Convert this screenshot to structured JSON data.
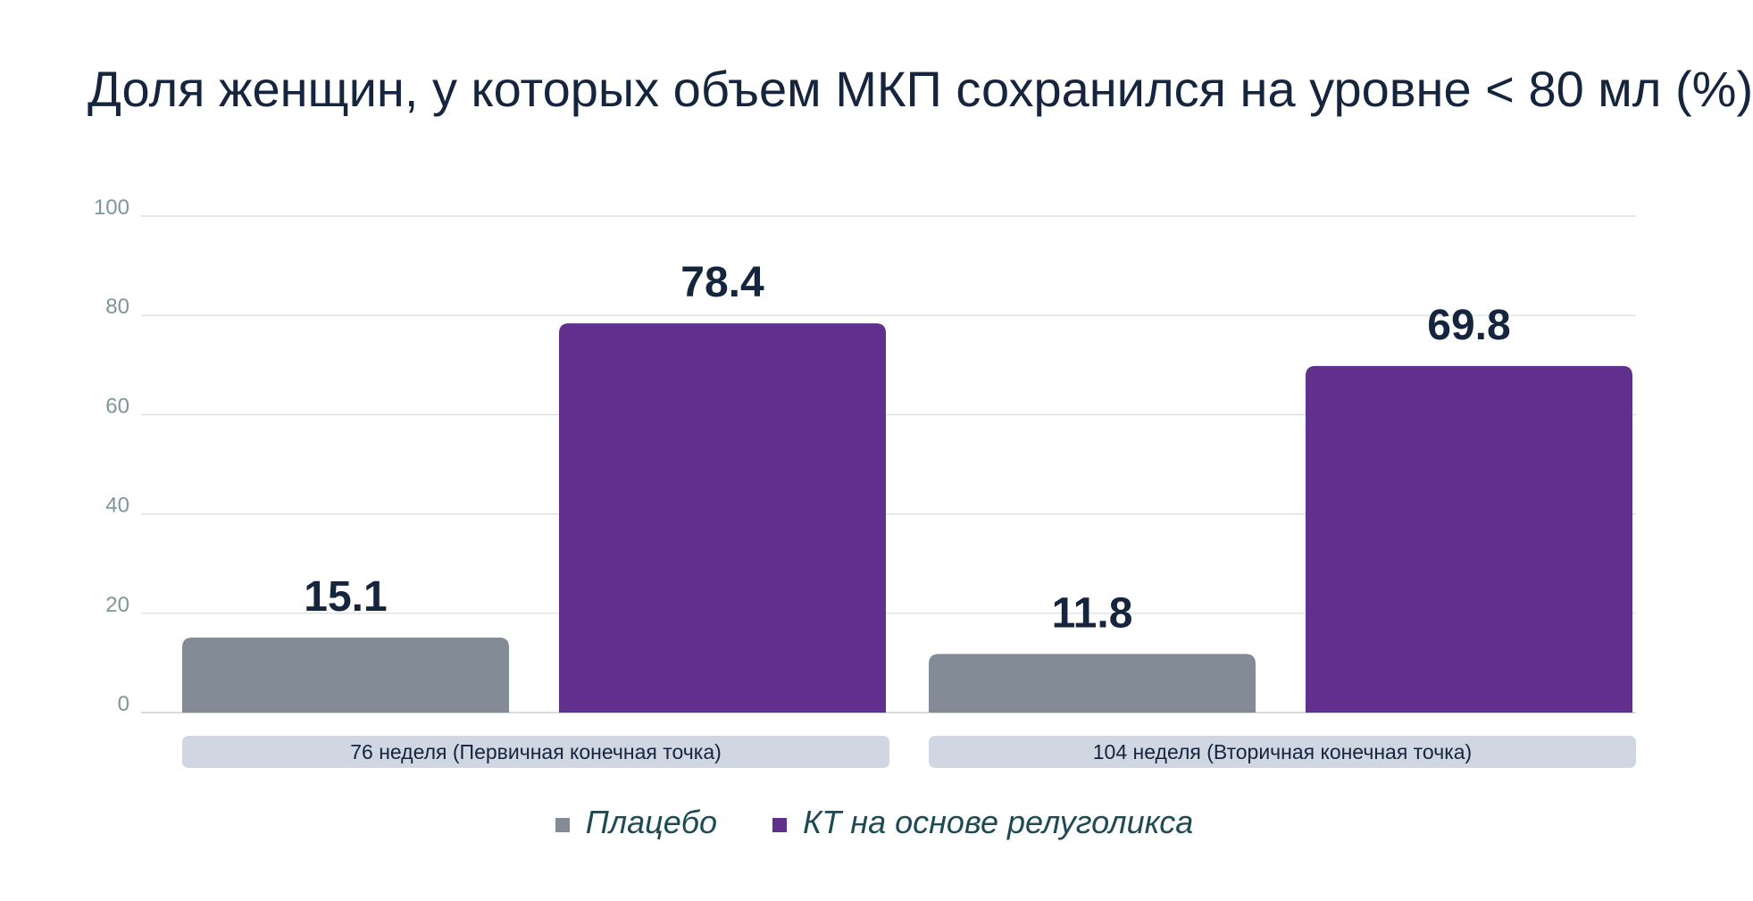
{
  "chart_data": {
    "type": "bar",
    "title": "Доля женщин, у которых объем МКП сохранился на уровне < 80 мл (%)",
    "categories": [
      "76 неделя (Первичная конечная точка)",
      "104 неделя (Вторичная конечная точка)"
    ],
    "series": [
      {
        "name": "Плацебо",
        "values": [
          15.1,
          11.8
        ],
        "labels": [
          "15.1",
          "11.8"
        ],
        "color": "#828b96"
      },
      {
        "name": "КТ на основе релуголикса",
        "values": [
          78.4,
          69.8
        ],
        "labels": [
          "78.4",
          "69.8"
        ],
        "color": "#61308f"
      }
    ],
    "ylim": [
      0,
      100
    ],
    "yticks": [
      "0",
      "20",
      "40",
      "60",
      "80",
      "100"
    ],
    "grid": true,
    "legend_position": "bottom-center",
    "colors": {
      "title": "#15253d",
      "tick": "#7d9696",
      "grid": "#d5dbdf",
      "category_bg": "#d0d6e2",
      "legend_text": "#1f4a55"
    }
  }
}
